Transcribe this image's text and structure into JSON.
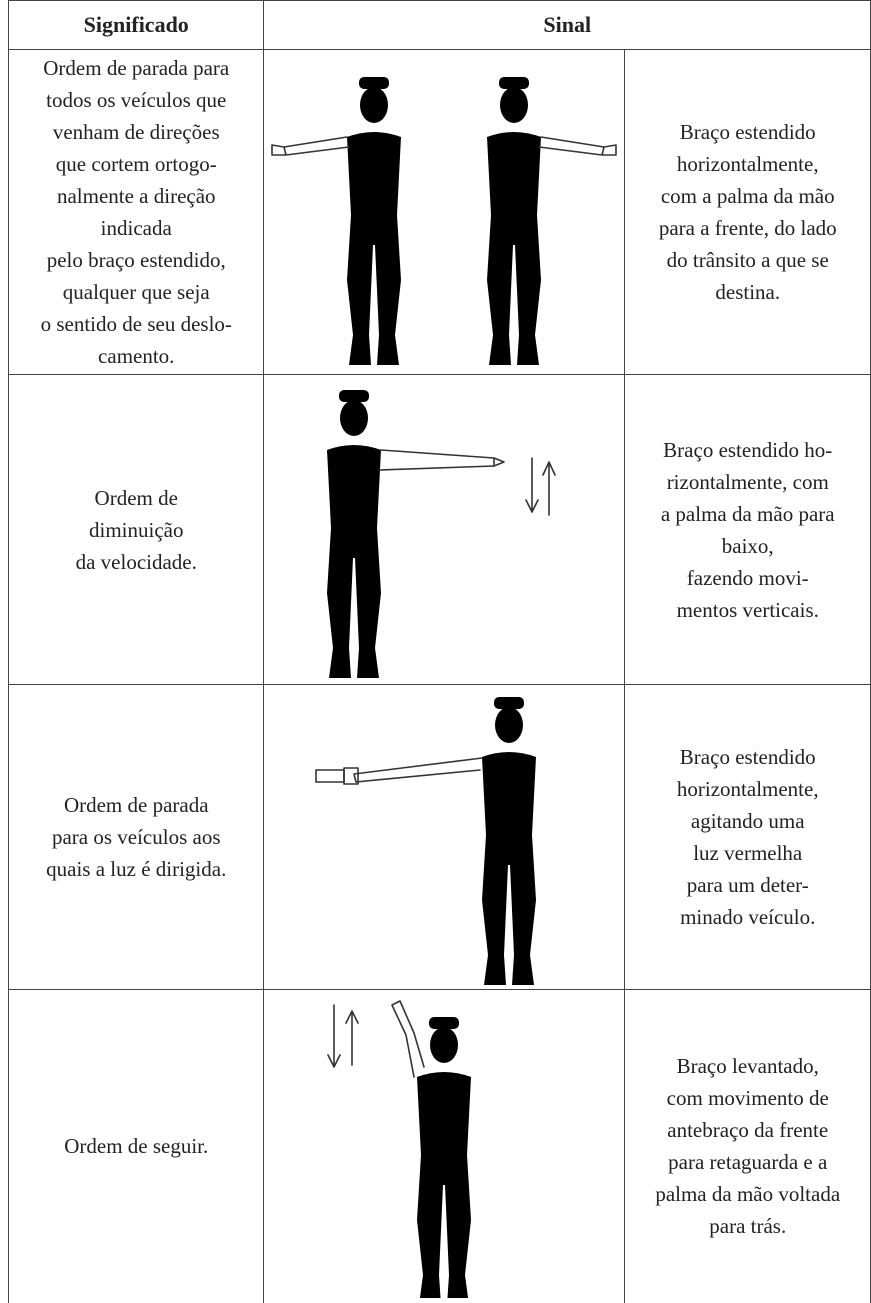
{
  "header": {
    "meaning": "Significado",
    "signal": "Sinal"
  },
  "rows": [
    {
      "meaning": [
        "Ordem de parada para",
        "todos os veículos que",
        "venham de direções",
        "que cortem ortogo-",
        "nalmente a direção",
        "indicada",
        "pelo braço estendido,",
        "qualquer que seja",
        "o sentido de seu deslo-",
        "camento."
      ],
      "description": [
        "Braço estendido",
        "horizontalmente,",
        "com a palma da mão",
        "para a frente, do lado",
        "do trânsito a que se",
        "destina."
      ]
    },
    {
      "meaning": [
        "Ordem de",
        "diminuição",
        "da velocidade."
      ],
      "description": [
        "Braço estendido ho-",
        "rizontalmente, com",
        "a palma da mão para",
        "baixo,",
        "fazendo movi-",
        "mentos verticais."
      ]
    },
    {
      "meaning": [
        "Ordem de parada",
        "para os veículos aos",
        "quais a luz é dirigida."
      ],
      "description": [
        "Braço estendido",
        "horizontalmente,",
        "agitando uma",
        "luz vermelha",
        "para um deter-",
        "minado veículo."
      ]
    },
    {
      "meaning": [
        "Ordem de seguir."
      ],
      "description": [
        "Braço levantado,",
        "com movimento de",
        "antebraço da frente",
        "para retaguarda e a",
        "palma da mão voltada",
        "para trás."
      ]
    }
  ]
}
